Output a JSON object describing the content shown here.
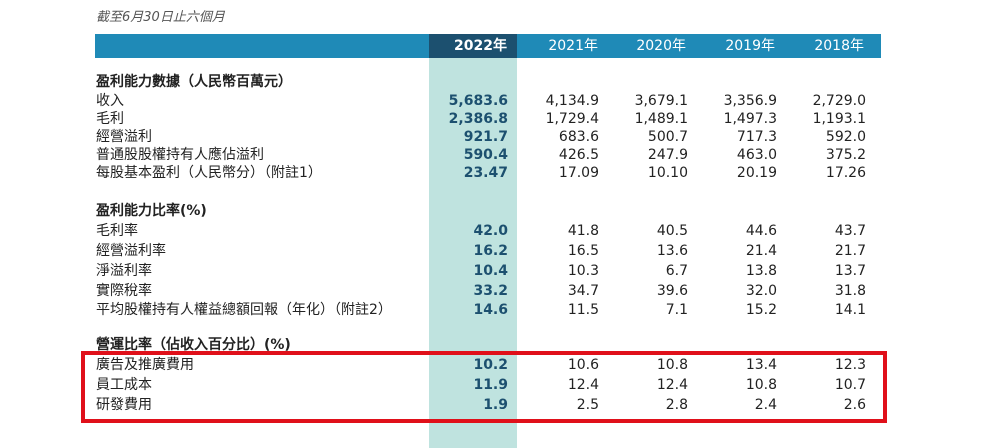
{
  "caption": "截至6月30日止六個月",
  "years": [
    "2022年",
    "2021年",
    "2020年",
    "2019年",
    "2018年"
  ],
  "sections": [
    {
      "title": "盈利能力數據（人民幣百萬元）",
      "rows": [
        {
          "label": "收入",
          "values": [
            "5,683.6",
            "4,134.9",
            "3,679.1",
            "3,356.9",
            "2,729.0"
          ]
        },
        {
          "label": "毛利",
          "values": [
            "2,386.8",
            "1,729.4",
            "1,489.1",
            "1,497.3",
            "1,193.1"
          ]
        },
        {
          "label": "經營溢利",
          "values": [
            "921.7",
            "683.6",
            "500.7",
            "717.3",
            "592.0"
          ]
        },
        {
          "label": "普通股股權持有人應佔溢利",
          "values": [
            "590.4",
            "426.5",
            "247.9",
            "463.0",
            "375.2"
          ]
        },
        {
          "label": "每股基本盈利（人民幣分）（附註1）",
          "values": [
            "23.47",
            "17.09",
            "10.10",
            "20.19",
            "17.26"
          ]
        }
      ]
    },
    {
      "title": "盈利能力比率(%)",
      "rows": [
        {
          "label": "毛利率",
          "values": [
            "42.0",
            "41.8",
            "40.5",
            "44.6",
            "43.7"
          ]
        },
        {
          "label": "經營溢利率",
          "values": [
            "16.2",
            "16.5",
            "13.6",
            "21.4",
            "21.7"
          ]
        },
        {
          "label": "淨溢利率",
          "values": [
            "10.4",
            "10.3",
            "6.7",
            "13.8",
            "13.7"
          ]
        },
        {
          "label": "實際稅率",
          "values": [
            "33.2",
            "34.7",
            "39.6",
            "32.0",
            "31.8"
          ]
        },
        {
          "label": "平均股權持有人權益總額回報（年化）（附註2）",
          "values": [
            "14.6",
            "11.5",
            "7.1",
            "15.2",
            "14.1"
          ]
        }
      ]
    },
    {
      "title": "營運比率（佔收入百分比）(%)",
      "rows": [
        {
          "label": "廣告及推廣費用",
          "values": [
            "10.2",
            "10.6",
            "10.8",
            "13.4",
            "12.3"
          ]
        },
        {
          "label": "員工成本",
          "values": [
            "11.9",
            "12.4",
            "12.4",
            "10.8",
            "10.7"
          ]
        },
        {
          "label": "研發費用",
          "values": [
            "1.9",
            "2.5",
            "2.8",
            "2.4",
            "2.6"
          ]
        }
      ]
    }
  ],
  "colors": {
    "header_blue": "#1f8ab7",
    "header_current": "#1c506f",
    "current_column": "#bfe3df",
    "highlight_border": "#e0101a"
  }
}
